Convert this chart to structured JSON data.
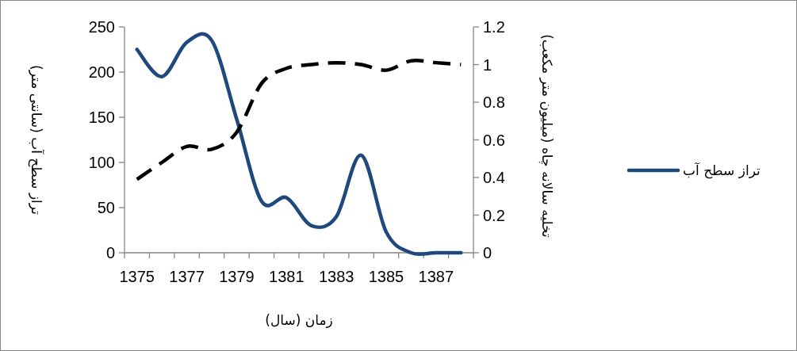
{
  "chart_data": {
    "type": "line",
    "xlabel": "زمان (سال)",
    "ylabel": "تراز سطح آب (سانتی متر)",
    "y2label": "تخلیه سالانه چاه (میلیون متر مکعب)",
    "categories": [
      "1375",
      null,
      "1377",
      null,
      "1379",
      null,
      "1381",
      null,
      "1383",
      null,
      "1385",
      null,
      "1387",
      null
    ],
    "series": [
      {
        "name": "تراز سطح آب",
        "color": "#1f497d",
        "line_style": "solid",
        "values": [
          225,
          195,
          233,
          235,
          148,
          57,
          61,
          30,
          40,
          108,
          23,
          0,
          0,
          0
        ]
      },
      {
        "color": "#000000",
        "line_style": "dashed",
        "axis": "y2",
        "values": [
          0.39,
          0.48,
          0.565,
          0.55,
          0.64,
          0.9,
          0.98,
          1.0,
          1.01,
          1.0,
          0.97,
          1.02,
          1.01,
          1.0
        ]
      }
    ],
    "ylim": [
      0,
      250
    ],
    "yticks": [
      0,
      50,
      100,
      150,
      200,
      250
    ],
    "y2lim": [
      0,
      1.2
    ],
    "y2ticks": [
      0,
      0.2,
      0.4,
      0.6,
      0.8,
      1,
      1.2
    ],
    "legend": "right"
  }
}
